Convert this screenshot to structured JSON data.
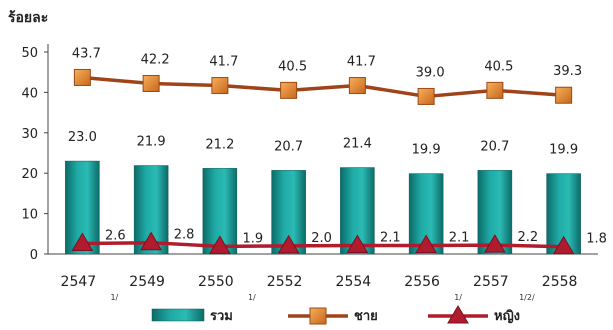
{
  "chart_data": {
    "type": "bar",
    "ylabel": "ร้อยละ",
    "ylim": [
      0,
      50
    ],
    "yticks": [
      "0",
      "10",
      "20",
      "30",
      "40",
      "50"
    ],
    "categories": [
      "2547",
      "2549",
      "2550",
      "2552",
      "2554",
      "2556",
      "2557",
      "2558"
    ],
    "footnotes": [
      "1/",
      "",
      "1/",
      "",
      "",
      "1/",
      "1/2/",
      ""
    ],
    "series": [
      {
        "name": "รวม",
        "kind": "bar",
        "color": "#1a9e9a",
        "values": [
          23.0,
          21.9,
          21.2,
          20.7,
          21.4,
          19.9,
          20.7,
          19.9
        ],
        "labels": [
          "23.0",
          "21.9",
          "21.2",
          "20.7",
          "21.4",
          "19.9",
          "20.7",
          "19.9"
        ]
      },
      {
        "name": "ชาย",
        "kind": "line",
        "marker": "square",
        "color": "#a0431a",
        "marker_color": "#e8892f",
        "values": [
          43.7,
          42.2,
          41.7,
          40.5,
          41.7,
          39.0,
          40.5,
          39.3
        ],
        "labels": [
          "43.7",
          "42.2",
          "41.7",
          "40.5",
          "41.7",
          "39.0",
          "40.5",
          "39.3"
        ]
      },
      {
        "name": "หญิง",
        "kind": "line",
        "marker": "triangle",
        "color": "#b01c2e",
        "marker_color": "#b01c2e",
        "values": [
          2.6,
          2.8,
          1.9,
          2.0,
          2.1,
          2.1,
          2.2,
          1.8
        ],
        "labels": [
          "2.6",
          "2.8",
          "1.9",
          "2.0",
          "2.1",
          "2.1",
          "2.2",
          "1.8"
        ]
      }
    ],
    "grid": false,
    "legend": "bottom"
  }
}
